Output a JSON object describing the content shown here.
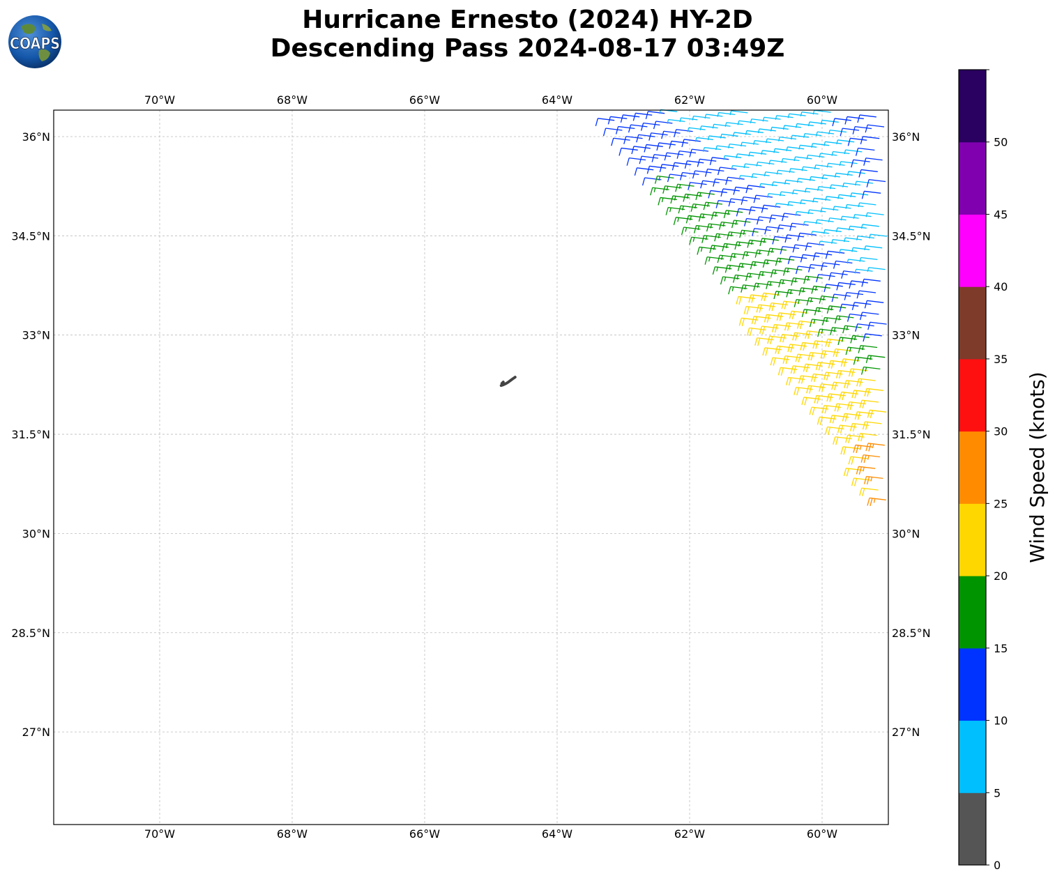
{
  "title": {
    "line1": "Hurricane Ernesto (2024) HY-2D",
    "line2": "Descending Pass 2024-08-17 03:49Z"
  },
  "logo": {
    "text": "COAPS",
    "icon": "globe-logo-icon"
  },
  "map": {
    "lon_range": [
      -71.6,
      -59.0
    ],
    "lat_range": [
      25.6,
      36.4
    ],
    "lon_ticks": [
      {
        "value": -70,
        "label": "70°W"
      },
      {
        "value": -68,
        "label": "68°W"
      },
      {
        "value": -66,
        "label": "66°W"
      },
      {
        "value": -64,
        "label": "64°W"
      },
      {
        "value": -62,
        "label": "62°W"
      },
      {
        "value": -60,
        "label": "60°W"
      }
    ],
    "lat_ticks": [
      {
        "value": 36,
        "label": "36°N"
      },
      {
        "value": 34.5,
        "label": "34.5°N"
      },
      {
        "value": 33,
        "label": "33°N"
      },
      {
        "value": 31.5,
        "label": "31.5°N"
      },
      {
        "value": 30,
        "label": "30°N"
      },
      {
        "value": 28.5,
        "label": "28.5°N"
      },
      {
        "value": 27,
        "label": "27°N"
      }
    ],
    "gridlines": true,
    "land_feature": {
      "name": "Bermuda",
      "lon": -64.75,
      "lat": 32.3
    },
    "swath": {
      "description": "satellite swath of wind barbs in the northeast corner, wind from the southwest",
      "corner_lon_lat": [
        [
          -63.4,
          36.4
        ],
        [
          -59.0,
          36.4
        ],
        [
          -59.0,
          30.4
        ],
        [
          -62.0,
          34.7
        ]
      ]
    }
  },
  "colorbar": {
    "label": "Wind Speed (knots)",
    "bounds": [
      0,
      5,
      10,
      15,
      20,
      25,
      30,
      35,
      40,
      45,
      50,
      55
    ],
    "tick_labels": [
      "0",
      "5",
      "10",
      "15",
      "20",
      "25",
      "30",
      "35",
      "40",
      "45",
      "50"
    ],
    "colors": [
      "#555555",
      "#00bfff",
      "#0033ff",
      "#009400",
      "#ffd700",
      "#ff8c00",
      "#ff1010",
      "#7e3b2a",
      "#ff00ff",
      "#8000b0",
      "#2a0060"
    ]
  }
}
